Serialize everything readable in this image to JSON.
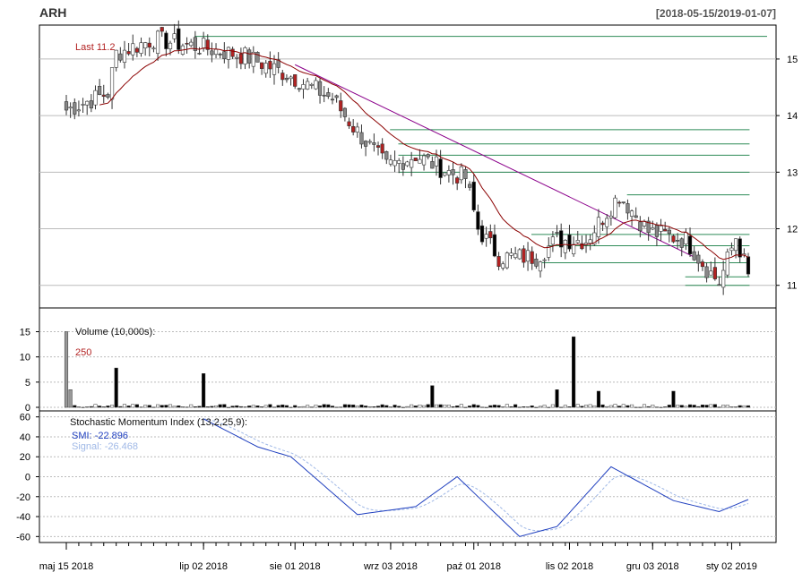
{
  "title": "ARH",
  "date_range": "[2018-05-15/2019-01-07]",
  "colors": {
    "up": "#ffffff",
    "down": "#000000",
    "red": "#b22222",
    "grey": "#888888",
    "ma": "#8b0000",
    "trend": "#8b008b",
    "level": "#2e8b57",
    "smi": "#1f3fbf",
    "signal": "#9fb8e6",
    "grid": "#bbbbbb"
  },
  "price_panel": {
    "last_label": "Last 11.2",
    "y_ticks": [
      11,
      12,
      13,
      14,
      15
    ],
    "ylim": [
      10.6,
      15.6
    ]
  },
  "volume_panel": {
    "label": "Volume (10,000s):",
    "last_value": "250",
    "y_ticks": [
      0,
      5,
      10,
      15
    ],
    "ylim": [
      0,
      19
    ]
  },
  "smi_panel": {
    "label": "Stochastic Momentum Index (13,2,25,9):",
    "smi_label": "SMI: -22.896",
    "signal_label": "Signal: -26.468",
    "y_ticks": [
      60,
      40,
      20,
      0,
      -20,
      -40,
      -60
    ],
    "ylim": [
      -66,
      66
    ]
  },
  "x_axis": {
    "labels": [
      {
        "i": 0,
        "text": "maj 15 2018"
      },
      {
        "i": 33,
        "text": "lip 02 2018"
      },
      {
        "i": 55,
        "text": "sie 01 2018"
      },
      {
        "i": 78,
        "text": "wrz 03 2018"
      },
      {
        "i": 98,
        "text": "paź 01 2018"
      },
      {
        "i": 121,
        "text": "lis 02 2018"
      },
      {
        "i": 141,
        "text": "gru 03 2018"
      },
      {
        "i": 160,
        "text": "sty 02 2019"
      }
    ],
    "n": 165
  },
  "chart_data": {
    "type": "candlestick",
    "title": "ARH",
    "date_range": "2018-05-15 to 2019-01-07",
    "last_close": 11.2,
    "anchor_closes": [
      {
        "date": "2018-05-15",
        "close": 14.1
      },
      {
        "date": "2018-05-29",
        "close": 14.4
      },
      {
        "date": "2018-06-01",
        "close": 15.1
      },
      {
        "date": "2018-06-15",
        "close": 15.35
      },
      {
        "date": "2018-07-02",
        "close": 15.2
      },
      {
        "date": "2018-07-16",
        "close": 15.05
      },
      {
        "date": "2018-08-01",
        "close": 14.7
      },
      {
        "date": "2018-08-15",
        "close": 14.3
      },
      {
        "date": "2018-08-22",
        "close": 13.8
      },
      {
        "date": "2018-09-03",
        "close": 13.1
      },
      {
        "date": "2018-09-14",
        "close": 13.3
      },
      {
        "date": "2018-09-25",
        "close": 13.0
      },
      {
        "date": "2018-10-01",
        "close": 12.9
      },
      {
        "date": "2018-10-05",
        "close": 12.0
      },
      {
        "date": "2018-10-12",
        "close": 11.5
      },
      {
        "date": "2018-10-26",
        "close": 11.5
      },
      {
        "date": "2018-11-02",
        "close": 11.8
      },
      {
        "date": "2018-11-12",
        "close": 11.8
      },
      {
        "date": "2018-11-23",
        "close": 12.6
      },
      {
        "date": "2018-12-03",
        "close": 11.95
      },
      {
        "date": "2018-12-17",
        "close": 11.8
      },
      {
        "date": "2018-12-24",
        "close": 11.3
      },
      {
        "date": "2018-12-28",
        "close": 11.05
      },
      {
        "date": "2019-01-02",
        "close": 11.85
      },
      {
        "date": "2019-01-07",
        "close": 11.2
      }
    ],
    "volume_spikes": [
      {
        "date": "2018-05-15",
        "value": 15
      },
      {
        "date": "2018-05-16",
        "value": 19
      },
      {
        "date": "2018-05-17",
        "value": 3.5
      },
      {
        "date": "2018-06-01",
        "value": 7.8
      },
      {
        "date": "2018-07-02",
        "value": 6.7
      },
      {
        "date": "2018-09-19",
        "value": 4.3
      },
      {
        "date": "2018-11-01",
        "value": 3.5
      },
      {
        "date": "2018-11-08",
        "value": 14
      },
      {
        "date": "2018-11-16",
        "value": 3.2
      },
      {
        "date": "2018-12-12",
        "value": 3.2
      }
    ],
    "smi_anchors": [
      {
        "date": "2018-07-02",
        "smi": 58
      },
      {
        "date": "2018-07-20",
        "smi": 30
      },
      {
        "date": "2018-08-01",
        "smi": 20
      },
      {
        "date": "2018-08-24",
        "smi": -38
      },
      {
        "date": "2018-09-14",
        "smi": -30
      },
      {
        "date": "2018-09-28",
        "smi": 0
      },
      {
        "date": "2018-10-19",
        "smi": -60
      },
      {
        "date": "2018-11-01",
        "smi": -50
      },
      {
        "date": "2018-11-21",
        "smi": 10
      },
      {
        "date": "2018-12-12",
        "smi": -24
      },
      {
        "date": "2018-12-28",
        "smi": -35
      },
      {
        "date": "2019-01-07",
        "smi": -22.896
      }
    ],
    "signal_last": -26.468,
    "horizontal_levels": [
      15.4,
      13.75,
      13.5,
      13.3,
      13.0,
      12.6,
      11.9,
      11.7,
      11.4,
      11.15,
      11.0
    ],
    "trendline": {
      "from": {
        "date": "2018-08-02",
        "price": 14.9
      },
      "to": {
        "date": "2018-12-19",
        "price": 11.5
      }
    }
  }
}
